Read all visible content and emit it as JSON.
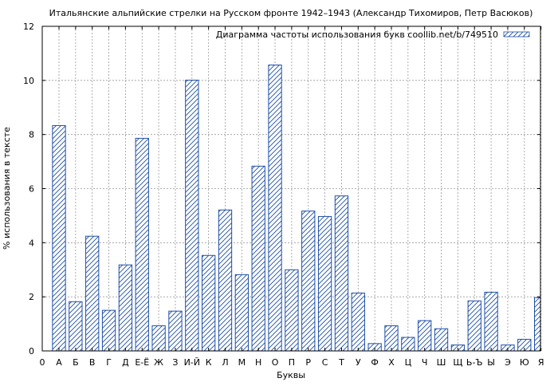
{
  "chart_data": {
    "type": "bar",
    "title": "Итальянские альпийские стрелки на Русском фронте 1942–1943 (Александр Тихомиров, Петр Васюков)",
    "xlabel": "Буквы",
    "ylabel": "% использования в тексте",
    "ylim": [
      0,
      12
    ],
    "yticks": [
      "0",
      "2",
      "4",
      "6",
      "8",
      "10",
      "12"
    ],
    "x_origin_label": "0",
    "grid": true,
    "legend_position": "top-right",
    "bar_color": "#1f4fa8",
    "categories": [
      "А",
      "Б",
      "В",
      "Г",
      "Д",
      "Е-Ё",
      "Ж",
      "З",
      "И-Й",
      "К",
      "Л",
      "М",
      "Н",
      "О",
      "П",
      "Р",
      "С",
      "Т",
      "У",
      "Ф",
      "Х",
      "Ц",
      "Ч",
      "Ш",
      "Щ",
      "Ь-Ъ",
      "Ы",
      "Э",
      "Ю",
      "Я"
    ],
    "series": [
      {
        "name": "Диаграмма частоты использования букв coollib.net/b/749510",
        "values": [
          8.33,
          1.82,
          4.24,
          1.5,
          3.18,
          7.86,
          0.93,
          1.47,
          10.01,
          3.53,
          5.21,
          2.82,
          6.83,
          10.57,
          3.0,
          5.17,
          4.97,
          5.73,
          2.14,
          0.27,
          0.93,
          0.5,
          1.12,
          0.82,
          0.22,
          1.85,
          2.17,
          0.22,
          0.43,
          1.97
        ]
      }
    ]
  }
}
